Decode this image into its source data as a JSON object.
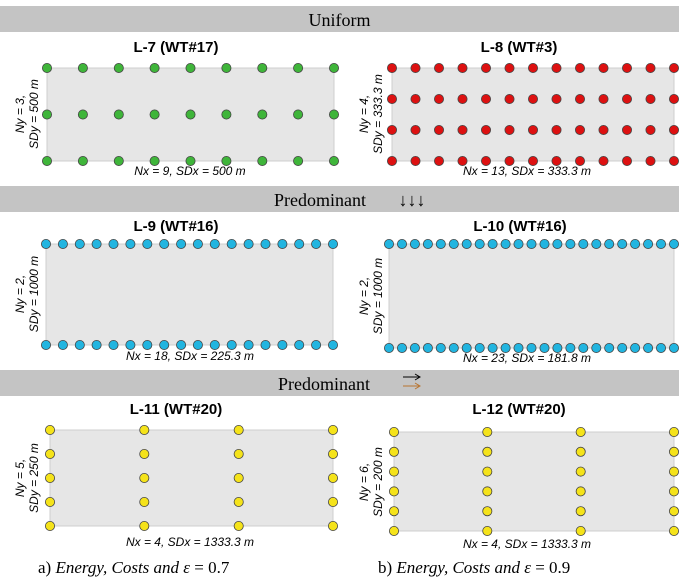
{
  "sections": [
    {
      "title_pre": "Uniform",
      "title_arrow": ""
    },
    {
      "title_pre": "Predominant",
      "title_arrow": "↓↓↓"
    },
    {
      "title_pre": "Predominant",
      "title_arrow": "→→"
    }
  ],
  "panels": [
    {
      "title": "L-7 (WT#17)",
      "nx": 9,
      "ny": 3,
      "xlabel": "Nx = 9, SDx = 500 m",
      "ylabel1": "Ny = 3,",
      "ylabel2": "SDy = 500 m",
      "color": "#3fb53a"
    },
    {
      "title": "L-8 (WT#3)",
      "nx": 13,
      "ny": 4,
      "xlabel": "Nx = 13, SDx = 333.3 m",
      "ylabel1": "Ny = 4,",
      "ylabel2": "SDy = 333.3 m",
      "color": "#dd1111"
    },
    {
      "title": "L-9 (WT#16)",
      "nx": 18,
      "ny": 2,
      "xlabel": "Nx = 18, SDx = 225.3 m",
      "ylabel1": "Ny = 2,",
      "ylabel2": "SDy = 1000 m",
      "color": "#22b5e0"
    },
    {
      "title": "L-10 (WT#16)",
      "nx": 23,
      "ny": 2,
      "xlabel": "Nx = 23, SDx = 181.8 m",
      "ylabel1": "Ny = 2,",
      "ylabel2": "SDy = 1000 m",
      "color": "#22b5e0"
    },
    {
      "title": "L-11 (WT#20)",
      "nx": 4,
      "ny": 5,
      "xlabel": "Nx = 4, SDx = 1333.3 m",
      "ylabel1": "Ny = 5,",
      "ylabel2": "SDy = 250 m",
      "color": "#f5e31a"
    },
    {
      "title": "L-12 (WT#20)",
      "nx": 4,
      "ny": 6,
      "xlabel": "Nx = 4, SDx = 1333.3 m",
      "ylabel1": "Ny = 6,",
      "ylabel2": "SDy = 200 m",
      "color": "#f5e31a"
    }
  ],
  "captions": [
    {
      "prefix": "a) ",
      "italic": "Energy, Costs and ",
      "symbol": "ε",
      "suffix": " = 0.7"
    },
    {
      "prefix": "b) ",
      "italic": "Energy, Costs and ",
      "symbol": "ε",
      "suffix": " = 0.9"
    }
  ]
}
